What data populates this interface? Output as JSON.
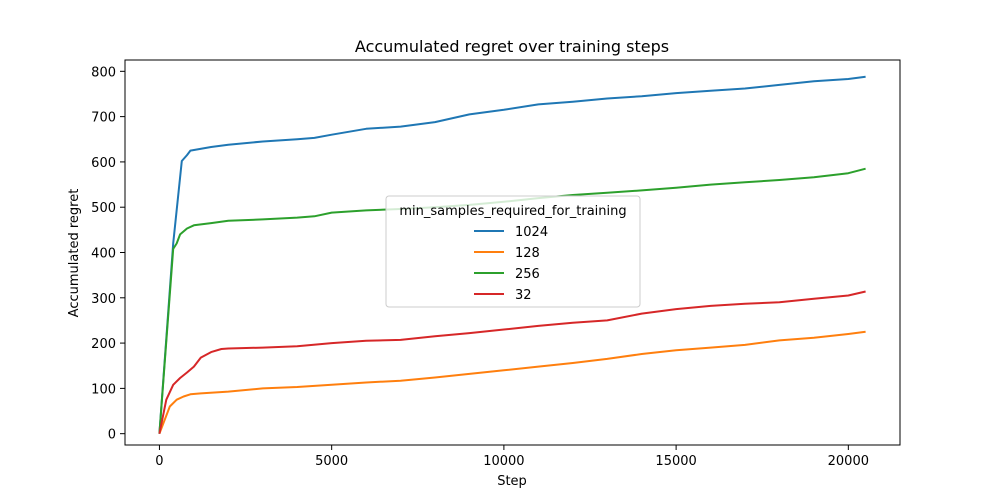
{
  "chart_data": {
    "type": "line",
    "title": "Accumulated regret over training steps",
    "xlabel": "Step",
    "ylabel": "Accumulated regret",
    "xlim": [
      -1000,
      21500
    ],
    "ylim": [
      -25,
      825
    ],
    "xticks": [
      0,
      5000,
      10000,
      15000,
      20000
    ],
    "yticks": [
      0,
      100,
      200,
      300,
      400,
      500,
      600,
      700,
      800
    ],
    "grid": false,
    "legend": {
      "title": "min_samples_required_for_training",
      "placement": "center"
    },
    "series": [
      {
        "name": "1024",
        "color": "#1f77b4",
        "x": [
          0,
          400,
          650,
          800,
          900,
          1500,
          2000,
          3000,
          4000,
          4500,
          5000,
          6000,
          7000,
          8000,
          9000,
          10000,
          11000,
          12000,
          13000,
          14000,
          15000,
          16000,
          17000,
          18000,
          19000,
          20000,
          20500
        ],
        "y": [
          0,
          420,
          602,
          615,
          625,
          633,
          638,
          645,
          650,
          653,
          660,
          673,
          678,
          688,
          705,
          715,
          727,
          733,
          740,
          745,
          752,
          757,
          762,
          770,
          778,
          783,
          788
        ]
      },
      {
        "name": "128",
        "color": "#ff7f0e",
        "x": [
          0,
          300,
          500,
          700,
          900,
          1200,
          2000,
          3000,
          4000,
          5000,
          6000,
          7000,
          8000,
          9000,
          10000,
          11000,
          12000,
          13000,
          14000,
          15000,
          16000,
          17000,
          18000,
          19000,
          20000,
          20500
        ],
        "y": [
          0,
          60,
          75,
          82,
          87,
          89,
          93,
          100,
          103,
          108,
          113,
          117,
          124,
          132,
          140,
          148,
          156,
          165,
          176,
          184,
          190,
          196,
          206,
          212,
          220,
          225
        ]
      },
      {
        "name": "256",
        "color": "#2ca02c",
        "x": [
          0,
          400,
          500,
          600,
          800,
          1000,
          1500,
          2000,
          3000,
          4000,
          4500,
          5000,
          6000,
          7000,
          8000,
          9000,
          10000,
          11000,
          12000,
          13000,
          14000,
          15000,
          16000,
          17000,
          18000,
          19000,
          20000,
          20500
        ],
        "y": [
          0,
          408,
          420,
          440,
          453,
          460,
          465,
          470,
          473,
          477,
          480,
          488,
          493,
          496,
          500,
          505,
          512,
          520,
          527,
          532,
          537,
          543,
          550,
          555,
          560,
          566,
          575,
          585
        ]
      },
      {
        "name": "32",
        "color": "#d62728",
        "x": [
          0,
          200,
          400,
          600,
          800,
          1000,
          1200,
          1500,
          1800,
          2000,
          3000,
          4000,
          5000,
          6000,
          7000,
          8000,
          9000,
          10000,
          11000,
          12000,
          13000,
          14000,
          15000,
          16000,
          17000,
          18000,
          19000,
          20000,
          20500
        ],
        "y": [
          0,
          75,
          108,
          123,
          135,
          148,
          168,
          180,
          187,
          188,
          190,
          193,
          200,
          205,
          207,
          215,
          222,
          230,
          238,
          245,
          250,
          265,
          275,
          282,
          287,
          290,
          298,
          305,
          314
        ]
      }
    ]
  }
}
